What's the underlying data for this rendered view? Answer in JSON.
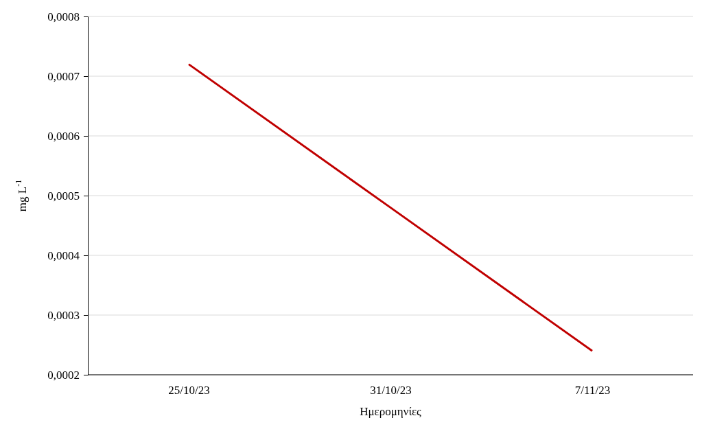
{
  "chart_data": {
    "type": "line",
    "xlabel": "Ημερομηνίες",
    "ylabel": "mg L$^{-1}$",
    "categories": [
      "25/10/23",
      "31/10/23",
      "7/11/23"
    ],
    "series": [
      {
        "color": "#c00000",
        "values": [
          0.00072,
          0.00048,
          0.00024
        ]
      }
    ],
    "ylim": [
      0.0002,
      0.0008
    ],
    "yticks": [
      {
        "value": 0.0002,
        "label": "0,0002"
      },
      {
        "value": 0.0003,
        "label": "0,0003"
      },
      {
        "value": 0.0004,
        "label": "0,0004"
      },
      {
        "value": 0.0005,
        "label": "0,0005"
      },
      {
        "value": 0.0006,
        "label": "0,0006"
      },
      {
        "value": 0.0007,
        "label": "0,0007"
      },
      {
        "value": 0.0008,
        "label": "0,0008"
      }
    ],
    "grid": "y",
    "marker": "none",
    "line_style": "solid"
  }
}
